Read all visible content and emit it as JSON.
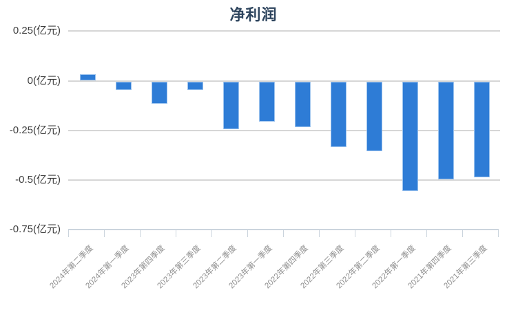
{
  "chart_data": {
    "type": "bar",
    "title": "净利润",
    "categories": [
      "2024年第二季度",
      "2024年第一季度",
      "2023年第四季度",
      "2023年第三季度",
      "2023年第二季度",
      "2023年第一季度",
      "2022年第四季度",
      "2022年第三季度",
      "2022年第二季度",
      "2022年第一季度",
      "2021年第四季度",
      "2021年第三季度"
    ],
    "values": [
      0.03,
      -0.04,
      -0.11,
      -0.04,
      -0.24,
      -0.2,
      -0.23,
      -0.33,
      -0.35,
      -0.55,
      -0.49,
      -0.48
    ],
    "unit": "亿元",
    "yticks": {
      "labels": [
        "0.25(亿元)",
        "0(亿元)",
        "-0.25(亿元)",
        "-0.5(亿元)",
        "-0.75(亿元)"
      ],
      "values": [
        0.25,
        0,
        -0.25,
        -0.5,
        -0.75
      ]
    },
    "ylim": [
      -0.75,
      0.25
    ],
    "xlabel": "",
    "ylabel": "",
    "grid": true,
    "legend_position": "none",
    "colors": {
      "bar": "#2E7CD6",
      "bar_border": "#9CC3EE",
      "gridline": "#D6D6D6",
      "axis_line": "#CBD4DD",
      "title_text": "#2E455E",
      "ytick_text": "#3D3D3D",
      "xtick_text": "#8F8F8F"
    }
  }
}
